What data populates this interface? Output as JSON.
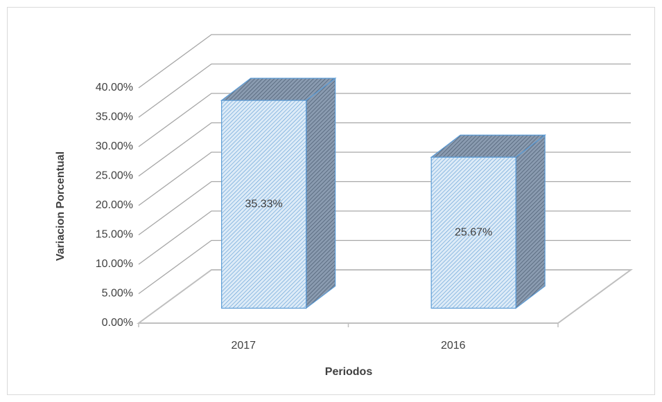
{
  "chart_data": {
    "type": "bar3d",
    "categories": [
      "2017",
      "2016"
    ],
    "values": [
      35.33,
      25.67
    ],
    "value_labels": [
      "35.33%",
      "25.67%"
    ],
    "x_label": "Periodos",
    "y_label": "Variacion Porcentual",
    "color": "#5b9bd5",
    "ylim": [
      0,
      40
    ],
    "yticks": [
      {
        "value": 0,
        "label": "0.00%"
      },
      {
        "value": 5,
        "label": "5.00%"
      },
      {
        "value": 10,
        "label": "10.00%"
      },
      {
        "value": 15,
        "label": "15.00%"
      },
      {
        "value": 20,
        "label": "20.00%"
      },
      {
        "value": 25,
        "label": "25.00%"
      },
      {
        "value": 30,
        "label": "30.00%"
      },
      {
        "value": 35,
        "label": "35.00%"
      },
      {
        "value": 40,
        "label": "40.00%"
      }
    ],
    "grid": true
  }
}
